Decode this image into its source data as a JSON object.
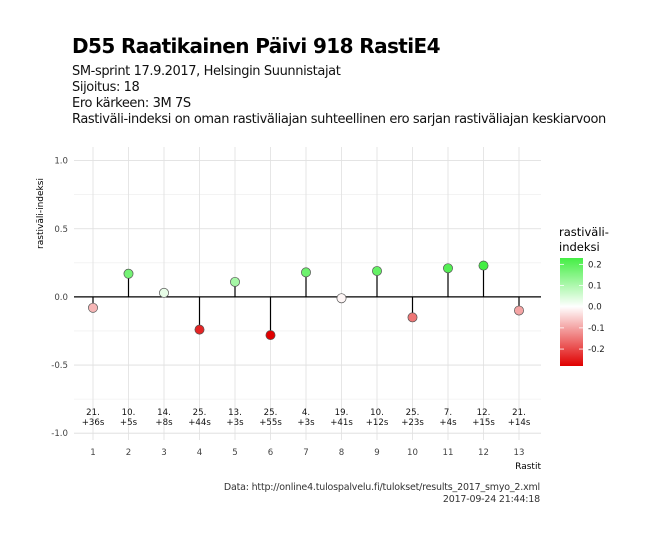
{
  "title": "D55 Raatikainen Päivi 918 RastiE4",
  "subtitle_lines": [
    "SM-sprint 17.9.2017, Helsingin Suunnistajat",
    "Sijoitus: 18",
    "Ero kärkeen: 3M 7S",
    "Rastiväli-indeksi on oman rastiväliajan suhteellinen ero sarjan rastiväliajan keskiarvoon"
  ],
  "caption_lines": [
    "Data: http://online4.tulospalvelu.fi/tulokset/results_2017_smyo_2.xml",
    "2017-09-24 21:44:18"
  ],
  "chart_data": {
    "type": "lollipop",
    "xlabel": "Rastit",
    "ylabel": "rastiväli-indeksi",
    "ylim": [
      -1.05,
      1.1
    ],
    "yticks": [
      -1.0,
      -0.5,
      0.0,
      0.5,
      1.0
    ],
    "ytick_labels": [
      "-1.0",
      "-0.5",
      "0.0",
      "0.5",
      "1.0"
    ],
    "x": [
      1,
      2,
      3,
      4,
      5,
      6,
      7,
      8,
      9,
      10,
      11,
      12,
      13
    ],
    "values": [
      -0.08,
      0.17,
      0.03,
      -0.24,
      0.11,
      -0.28,
      0.18,
      -0.01,
      0.19,
      -0.15,
      0.21,
      0.23,
      -0.1
    ],
    "point_labels": [
      [
        "21.",
        "+36s"
      ],
      [
        "10.",
        "+5s"
      ],
      [
        "14.",
        "+8s"
      ],
      [
        "25.",
        "+44s"
      ],
      [
        "13.",
        "+3s"
      ],
      [
        "25.",
        "+55s"
      ],
      [
        "4.",
        "+3s"
      ],
      [
        "19.",
        "+41s"
      ],
      [
        "10.",
        "+12s"
      ],
      [
        "25.",
        "+23s"
      ],
      [
        "7.",
        "+4s"
      ],
      [
        "12.",
        "+15s"
      ],
      [
        "21.",
        "+14s"
      ]
    ],
    "legend": {
      "title_lines": [
        "rastiväli-",
        "indeksi"
      ],
      "ticks": [
        0.2,
        0.1,
        0.0,
        -0.1,
        -0.2
      ],
      "tick_labels": [
        "0.2",
        "0.1",
        "0.0",
        "-0.1",
        "-0.2"
      ],
      "range": [
        -0.28,
        0.23
      ],
      "position": "right"
    },
    "colors": {
      "low": "#e00000",
      "mid": "#ffffff",
      "high": "#44ee44"
    },
    "grid": true
  }
}
